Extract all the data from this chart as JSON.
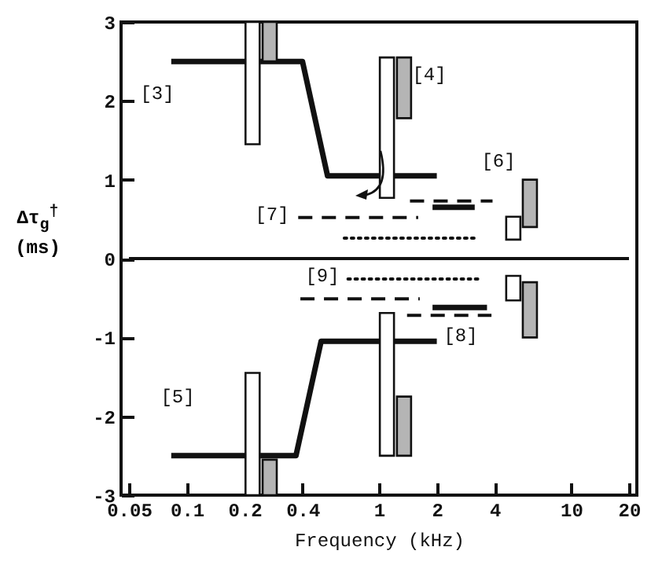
{
  "chart_data": {
    "type": "line",
    "xlabel": "Frequency (kHz)",
    "ylabel": "Δτ$_{g}$$^{†}$ (ms)",
    "log": "x",
    "grid": false,
    "xlim": [
      0.05,
      20
    ],
    "xticks": [
      0.05,
      0.1,
      0.2,
      0.4,
      1,
      2,
      4,
      10,
      20
    ],
    "ylim": [
      -3,
      3
    ],
    "yticks": [
      -3,
      -2,
      -1,
      0,
      1,
      2,
      3
    ],
    "ref_lines": [
      {
        "axis": "y",
        "value": 0,
        "color": "#111111"
      }
    ],
    "series": [
      {
        "x": [
          0.083,
          0.4,
          0.54,
          2
        ],
        "values": [
          2.5,
          2.5,
          1.05,
          1.05
        ],
        "color": "#111111",
        "line_style": "solid"
      },
      {
        "x": [
          0.083,
          0.37,
          0.5,
          2
        ],
        "values": [
          -2.5,
          -2.5,
          -1.05,
          -1.05
        ],
        "color": "#111111",
        "line_style": "solid"
      },
      {
        "x": [
          0.38,
          1.6
        ],
        "values": [
          0.52,
          0.52
        ],
        "color": "#111111",
        "line_style": "dashed"
      },
      {
        "x": [
          0.39,
          1.63
        ],
        "values": [
          -0.51,
          -0.51
        ],
        "color": "#111111",
        "line_style": "dashed"
      },
      {
        "x": [
          0.66,
          3.3
        ],
        "values": [
          0.26,
          0.26
        ],
        "color": "#111111",
        "line_style": "dotted"
      },
      {
        "x": [
          0.69,
          3.3
        ],
        "values": [
          -0.26,
          -0.26
        ],
        "color": "#111111",
        "line_style": "dotted"
      },
      {
        "x": [
          1.45,
          3.9
        ],
        "values": [
          0.73,
          0.73
        ],
        "color": "#111111",
        "line_style": "dashed"
      },
      {
        "x": [
          1.4,
          3.85
        ],
        "values": [
          -0.72,
          -0.72
        ],
        "color": "#111111",
        "line_style": "dashed"
      },
      {
        "x": [
          1.9,
          3.15
        ],
        "values": [
          0.65,
          0.65
        ],
        "color": "#111111",
        "line_style": "solid"
      },
      {
        "x": [
          1.9,
          3.65
        ],
        "values": [
          -0.62,
          -0.62
        ],
        "color": "#111111",
        "line_style": "solid"
      },
      {
        "type": "bar",
        "x": [
          0.22,
          1.1,
          5.0
        ],
        "base": [
          1.45,
          0.77,
          0.24
        ],
        "values": [
          1.55,
          1.78,
          0.29
        ],
        "color": "#ffffff"
      },
      {
        "type": "bar",
        "x": [
          0.22,
          1.1,
          5.0
        ],
        "base": [
          -3,
          -2.5,
          -0.53
        ],
        "values": [
          1.55,
          1.81,
          0.31
        ],
        "color": "#ffffff"
      },
      {
        "type": "bar",
        "x": [
          0.27,
          1.35,
          6.1
        ],
        "base": [
          2.5,
          1.78,
          0.4
        ],
        "values": [
          0.5,
          0.77,
          0.6
        ],
        "color": "#b5b5b5"
      },
      {
        "type": "bar",
        "x": [
          0.27,
          1.35,
          6.1
        ],
        "base": [
          -3,
          -2.5,
          -1.0
        ],
        "values": [
          0.45,
          0.75,
          0.7
        ],
        "color": "#b5b5b5"
      }
    ],
    "annotations": [
      "[3]",
      "[4]",
      "[5]",
      "[6]",
      "[7]",
      "[8]",
      "[9]"
    ]
  }
}
